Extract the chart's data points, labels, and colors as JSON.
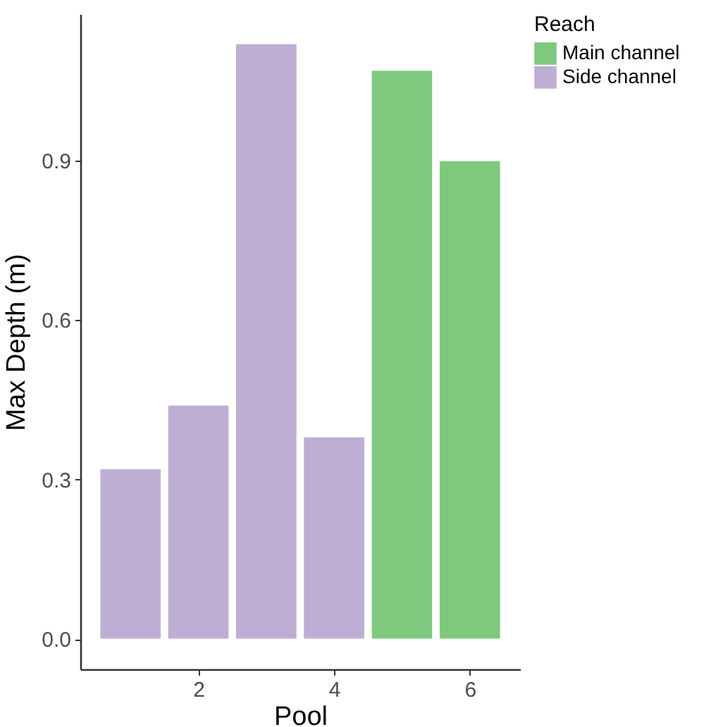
{
  "chart_data": {
    "type": "bar",
    "xlabel": "Pool",
    "ylabel": "Max Depth (m)",
    "legend_title": "Reach",
    "x": [
      1,
      2,
      3,
      4,
      5,
      6
    ],
    "series": [
      {
        "name": "Main channel",
        "color": "#7fc97f",
        "values": [
          null,
          null,
          null,
          null,
          1.07,
          0.9
        ]
      },
      {
        "name": "Side channel",
        "color": "#beaed4",
        "values": [
          0.32,
          0.44,
          1.12,
          0.38,
          null,
          null
        ]
      }
    ],
    "xlim": [
      0.26,
      6.74
    ],
    "xticks": [
      2,
      4,
      6
    ],
    "ylim": [
      -0.057,
      1.176
    ],
    "yticks": [
      {
        "value": 0,
        "label": "0.0"
      },
      0.3,
      0.6,
      0.9
    ],
    "grid": false,
    "legend": "right"
  }
}
